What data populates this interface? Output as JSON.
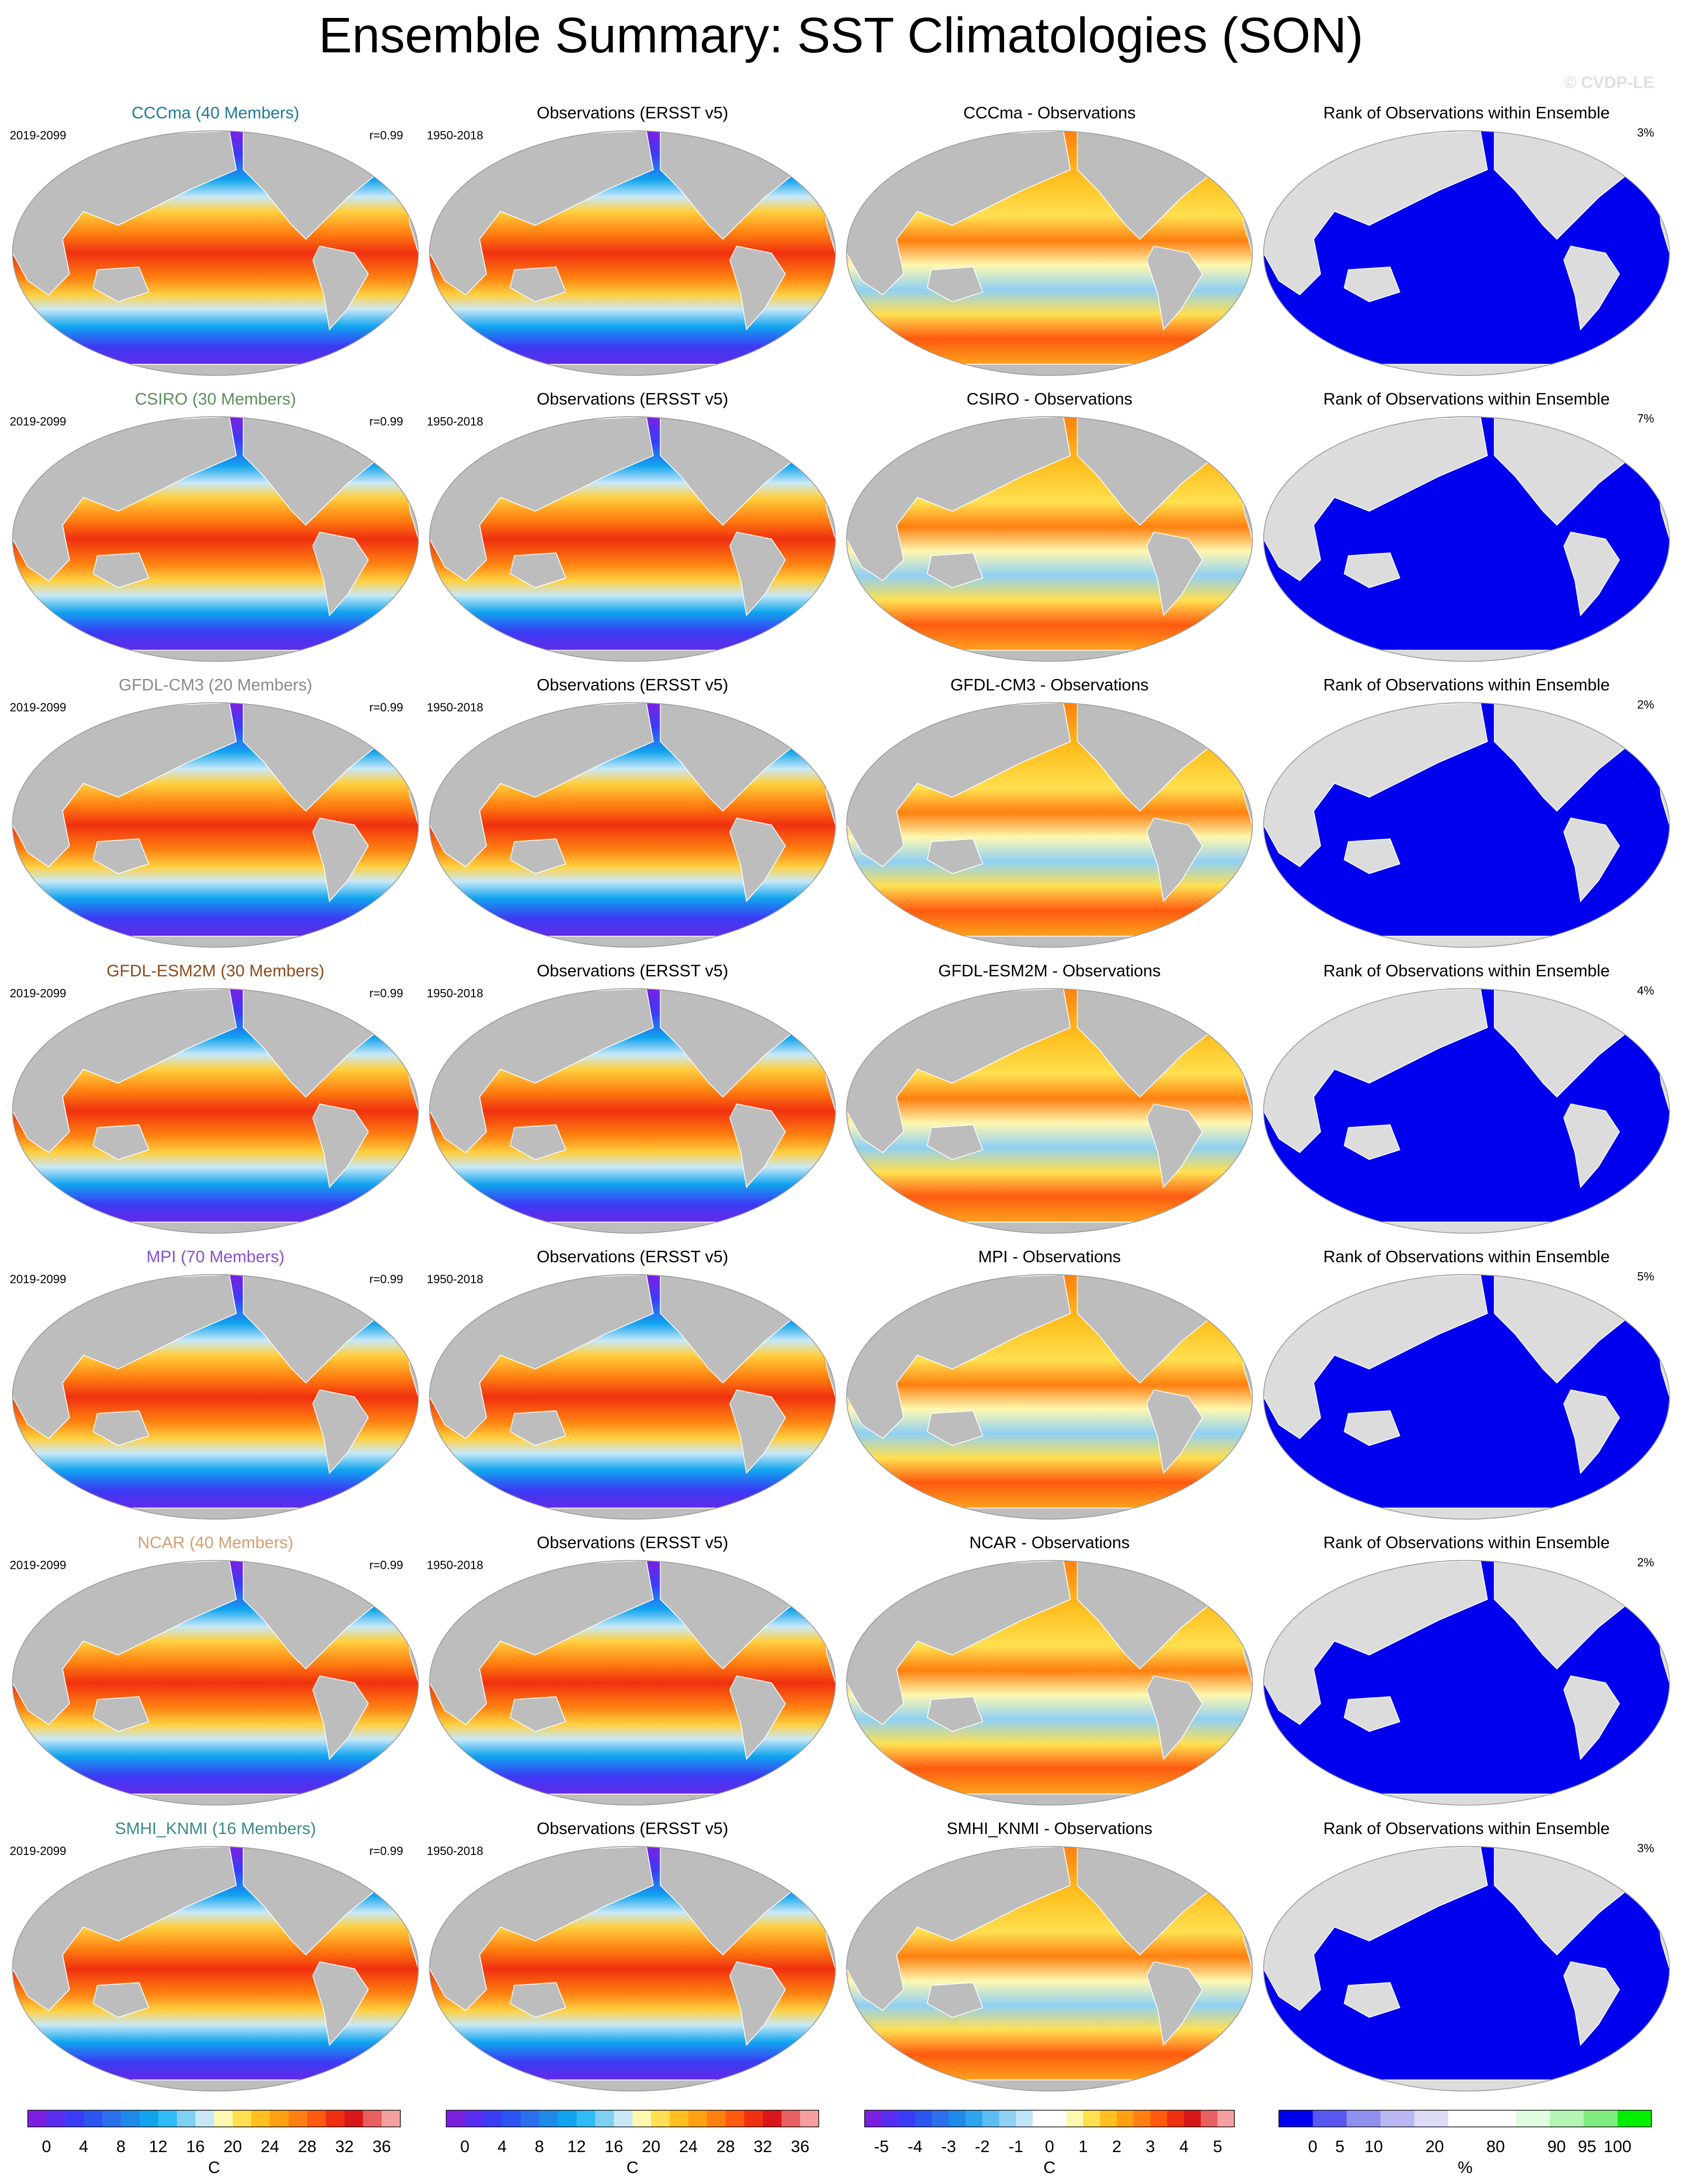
{
  "title": "Ensemble Summary: SST Climatologies (SON)",
  "watermark": "© CVDP-LE",
  "rows": [
    {
      "model": {
        "title": "CCCma (40 Members)",
        "color": "#1f7a99",
        "period": "2019-2099",
        "r": "r=0.99"
      },
      "obs": {
        "title": "Observations (ERSST v5)",
        "period": "1950-2018"
      },
      "diff": {
        "title": "CCCma - Observations"
      },
      "rank": {
        "title": "Rank of Observations within Ensemble",
        "pct": "3%"
      }
    },
    {
      "model": {
        "title": "CSIRO (30 Members)",
        "color": "#5b8f5b",
        "period": "2019-2099",
        "r": "r=0.99"
      },
      "obs": {
        "title": "Observations (ERSST v5)",
        "period": "1950-2018"
      },
      "diff": {
        "title": "CSIRO - Observations"
      },
      "rank": {
        "title": "Rank of Observations within Ensemble",
        "pct": "7%"
      }
    },
    {
      "model": {
        "title": "GFDL-CM3 (20 Members)",
        "color": "#8a8a8a",
        "period": "2019-2099",
        "r": "r=0.99"
      },
      "obs": {
        "title": "Observations (ERSST v5)",
        "period": "1950-2018"
      },
      "diff": {
        "title": "GFDL-CM3 - Observations"
      },
      "rank": {
        "title": "Rank of Observations within Ensemble",
        "pct": "2%"
      }
    },
    {
      "model": {
        "title": "GFDL-ESM2M (30 Members)",
        "color": "#8b4a1c",
        "period": "2019-2099",
        "r": "r=0.99"
      },
      "obs": {
        "title": "Observations (ERSST v5)",
        "period": "1950-2018"
      },
      "diff": {
        "title": "GFDL-ESM2M - Observations"
      },
      "rank": {
        "title": "Rank of Observations within Ensemble",
        "pct": "4%"
      }
    },
    {
      "model": {
        "title": "MPI (70 Members)",
        "color": "#8a4fd0",
        "period": "2019-2099",
        "r": "r=0.99"
      },
      "obs": {
        "title": "Observations (ERSST v5)",
        "period": "1950-2018"
      },
      "diff": {
        "title": "MPI - Observations"
      },
      "rank": {
        "title": "Rank of Observations within Ensemble",
        "pct": "5%"
      }
    },
    {
      "model": {
        "title": "NCAR (40 Members)",
        "color": "#d4a070",
        "period": "2019-2099",
        "r": "r=0.99"
      },
      "obs": {
        "title": "Observations (ERSST v5)",
        "period": "1950-2018"
      },
      "diff": {
        "title": "NCAR - Observations"
      },
      "rank": {
        "title": "Rank of Observations within Ensemble",
        "pct": "2%"
      }
    },
    {
      "model": {
        "title": "SMHI_KNMI (16 Members)",
        "color": "#3a8a8a",
        "period": "2019-2099",
        "r": "r=0.99"
      },
      "obs": {
        "title": "Observations (ERSST v5)",
        "period": "1950-2018"
      },
      "diff": {
        "title": "SMHI_KNMI - Observations"
      },
      "rank": {
        "title": "Rank of Observations within Ensemble",
        "pct": "3%"
      }
    }
  ],
  "colorbars": [
    {
      "labels": [
        0,
        4,
        8,
        12,
        16,
        20,
        24,
        28,
        32,
        36
      ],
      "unit": "C",
      "colors": [
        "#7b1fe0",
        "#5a2ef0",
        "#3a3cf5",
        "#2a55f0",
        "#2a70ec",
        "#1e8ae8",
        "#10a4ee",
        "#2ebcf4",
        "#80d0f4",
        "#c8e8f8",
        "#fff8b0",
        "#ffe050",
        "#ffc020",
        "#ffa010",
        "#ff8010",
        "#ff5a10",
        "#f03010",
        "#d81818",
        "#e86060",
        "#f4a0a0"
      ]
    },
    {
      "labels": [
        0,
        4,
        8,
        12,
        16,
        20,
        24,
        28,
        32,
        36
      ],
      "unit": "C",
      "colors": [
        "#7b1fe0",
        "#5a2ef0",
        "#3a3cf5",
        "#2a55f0",
        "#2a70ec",
        "#1e8ae8",
        "#10a4ee",
        "#2ebcf4",
        "#80d0f4",
        "#c8e8f8",
        "#fff8b0",
        "#ffe050",
        "#ffc020",
        "#ffa010",
        "#ff8010",
        "#ff5a10",
        "#f03010",
        "#d81818",
        "#e86060",
        "#f4a0a0"
      ]
    },
    {
      "labels": [
        -5,
        -4,
        -3,
        -2,
        -1,
        0,
        1,
        2,
        3,
        4,
        5
      ],
      "unit": "C",
      "colors": [
        "#7b1fe0",
        "#5a2ef0",
        "#3a3cf5",
        "#2a55f0",
        "#2a70ec",
        "#1e8ae8",
        "#2ea4ee",
        "#5cbcf4",
        "#90d0f4",
        "#c0e4f8",
        "#ffffff",
        "#ffffff",
        "#fff8b0",
        "#ffe050",
        "#ffc020",
        "#ffa010",
        "#ff8010",
        "#ff5a10",
        "#f03010",
        "#d81818",
        "#e86060",
        "#f4a0a0"
      ]
    },
    {
      "labels": [
        0,
        5,
        10,
        20,
        80,
        90,
        95,
        100
      ],
      "unit": "%",
      "colors": [
        "#0000ee",
        "#5858f0",
        "#9090ee",
        "#b8b8f2",
        "#dcdcf6",
        "#ffffff",
        "#ffffff",
        "#e2fce2",
        "#b4f4b4",
        "#80ec80",
        "#00ee00"
      ]
    }
  ]
}
